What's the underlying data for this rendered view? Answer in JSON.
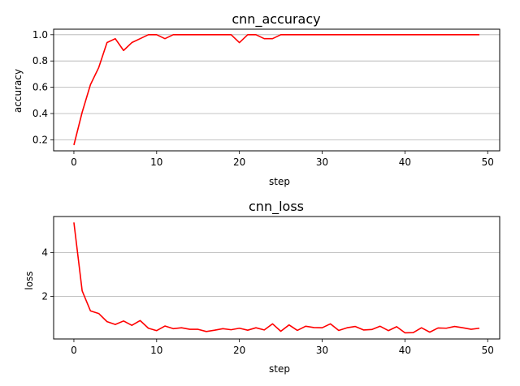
{
  "colors": {
    "line": "#ff0000",
    "grid": "#b0b0b0",
    "axes": "#000000",
    "background": "#ffffff"
  },
  "chart_data": [
    {
      "type": "line",
      "title": "cnn_accuracy",
      "xlabel": "step",
      "ylabel": "accuracy",
      "xlim": [
        -2.45,
        51.45
      ],
      "ylim": [
        0.116,
        1.042
      ],
      "xticks": [
        0,
        10,
        20,
        30,
        40,
        50
      ],
      "xtick_labels": [
        "0",
        "10",
        "20",
        "30",
        "40",
        "50"
      ],
      "yticks": [
        0.2,
        0.4,
        0.6,
        0.8,
        1.0
      ],
      "ytick_labels": [
        "0.2",
        "0.4",
        "0.6",
        "0.8",
        "1.0"
      ],
      "grid": "y",
      "series": [
        {
          "x": [
            0,
            1,
            2,
            3,
            4,
            5,
            6,
            7,
            8,
            9,
            10,
            11,
            12,
            13,
            14,
            15,
            16,
            17,
            18,
            19,
            20,
            21,
            22,
            23,
            24,
            25,
            26,
            27,
            28,
            29,
            30,
            31,
            32,
            33,
            34,
            35,
            36,
            37,
            38,
            39,
            40,
            41,
            42,
            43,
            44,
            45,
            46,
            47,
            48,
            49
          ],
          "values": [
            0.16,
            0.41,
            0.62,
            0.75,
            0.94,
            0.97,
            0.88,
            0.94,
            0.97,
            1.0,
            1.0,
            0.97,
            1.0,
            1.0,
            1.0,
            1.0,
            1.0,
            1.0,
            1.0,
            1.0,
            0.94,
            1.0,
            1.0,
            0.97,
            0.97,
            1.0,
            1.0,
            1.0,
            1.0,
            1.0,
            1.0,
            1.0,
            1.0,
            1.0,
            1.0,
            1.0,
            1.0,
            1.0,
            1.0,
            1.0,
            1.0,
            1.0,
            1.0,
            1.0,
            1.0,
            1.0,
            1.0,
            1.0,
            1.0,
            1.0
          ]
        }
      ]
    },
    {
      "type": "line",
      "title": "cnn_loss",
      "xlabel": "step",
      "ylabel": "loss",
      "xlim": [
        -2.45,
        51.45
      ],
      "ylim": [
        0.06,
        5.64
      ],
      "xticks": [
        0,
        10,
        20,
        30,
        40,
        50
      ],
      "xtick_labels": [
        "0",
        "10",
        "20",
        "30",
        "40",
        "50"
      ],
      "yticks": [
        2,
        4
      ],
      "ytick_labels": [
        "2",
        "4"
      ],
      "grid": "y",
      "series": [
        {
          "x": [
            0,
            1,
            2,
            3,
            4,
            5,
            6,
            7,
            8,
            9,
            10,
            11,
            12,
            13,
            14,
            15,
            16,
            17,
            18,
            19,
            20,
            21,
            22,
            23,
            24,
            25,
            26,
            27,
            28,
            29,
            30,
            31,
            32,
            33,
            34,
            35,
            36,
            37,
            38,
            39,
            40,
            41,
            42,
            43,
            44,
            45,
            46,
            47,
            48,
            49
          ],
          "values": [
            5.37,
            2.25,
            1.34,
            1.22,
            0.85,
            0.72,
            0.88,
            0.68,
            0.9,
            0.55,
            0.44,
            0.65,
            0.53,
            0.57,
            0.5,
            0.5,
            0.4,
            0.46,
            0.53,
            0.48,
            0.55,
            0.46,
            0.57,
            0.47,
            0.75,
            0.41,
            0.7,
            0.45,
            0.64,
            0.58,
            0.57,
            0.75,
            0.45,
            0.57,
            0.63,
            0.47,
            0.49,
            0.64,
            0.44,
            0.62,
            0.34,
            0.35,
            0.57,
            0.37,
            0.56,
            0.55,
            0.63,
            0.57,
            0.5,
            0.55
          ]
        }
      ]
    }
  ]
}
